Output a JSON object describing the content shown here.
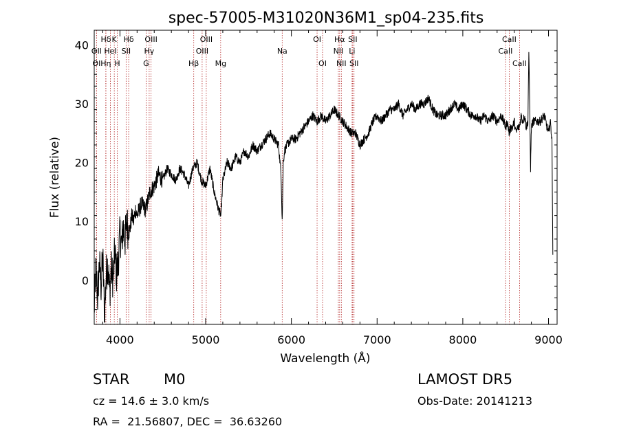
{
  "chart_data": {
    "type": "line",
    "title": "spec-57005-M31020N36M1_sp04-235.fits",
    "xlabel": "Wavelength (Å)",
    "ylabel": "Flux (relative)",
    "xlim": [
      3700,
      9100
    ],
    "ylim": [
      -7.5,
      42.5
    ],
    "xticks": [
      4000,
      5000,
      6000,
      7000,
      8000,
      9000
    ],
    "yticks": [
      0,
      10,
      20,
      30,
      40
    ],
    "grid": false,
    "line_color": "#000000",
    "marker_color": "#b22222",
    "lines": [
      {
        "label": "Hδ",
        "x": 3836,
        "row": 0
      },
      {
        "label": "K",
        "x": 3934,
        "row": 0
      },
      {
        "label": "Hδ",
        "x": 4102,
        "row": 0
      },
      {
        "label": "OIII",
        "x": 4363,
        "row": 0
      },
      {
        "label": "OIII",
        "x": 5007,
        "row": 0
      },
      {
        "label": "OI",
        "x": 6300,
        "row": 0
      },
      {
        "label": "Hα",
        "x": 6563,
        "row": 0
      },
      {
        "label": "SII",
        "x": 6716,
        "row": 0
      },
      {
        "label": "CaII",
        "x": 8542,
        "row": 0
      },
      {
        "label": "OII",
        "x": 3727,
        "row": 1
      },
      {
        "label": "HeI",
        "x": 3889,
        "row": 1
      },
      {
        "label": "SII",
        "x": 4072,
        "row": 1
      },
      {
        "label": "Hγ",
        "x": 4341,
        "row": 1
      },
      {
        "label": "OIII",
        "x": 4959,
        "row": 1
      },
      {
        "label": "Na",
        "x": 5893,
        "row": 1
      },
      {
        "label": "NII",
        "x": 6548,
        "row": 1
      },
      {
        "label": "Li",
        "x": 6708,
        "row": 1
      },
      {
        "label": "CaII",
        "x": 8498,
        "row": 1
      },
      {
        "label": "OI",
        "x": 3727,
        "row": 2
      },
      {
        "label": "Hη",
        "x": 3835,
        "row": 2
      },
      {
        "label": "H",
        "x": 3969,
        "row": 2
      },
      {
        "label": "G",
        "x": 4305,
        "row": 2
      },
      {
        "label": "Hβ",
        "x": 4861,
        "row": 2
      },
      {
        "label": "Mg",
        "x": 5175,
        "row": 2
      },
      {
        "label": "OI",
        "x": 6364,
        "row": 2
      },
      {
        "label": "NII",
        "x": 6583,
        "row": 2
      },
      {
        "label": "SII",
        "x": 6731,
        "row": 2
      },
      {
        "label": "CaII",
        "x": 8662,
        "row": 2
      }
    ],
    "series": [
      {
        "x": [
          3700,
          3720,
          3740,
          3760,
          3780,
          3800,
          3820,
          3840,
          3860,
          3880,
          3900,
          3920,
          3940,
          3960,
          3980,
          4000,
          4020,
          4040,
          4060,
          4080,
          4100,
          4120,
          4140,
          4160,
          4180,
          4200,
          4250,
          4300,
          4350,
          4400,
          4450,
          4500,
          4550,
          4600,
          4650,
          4700,
          4750,
          4800,
          4850,
          4900,
          4950,
          5000,
          5050,
          5100,
          5150,
          5180,
          5200,
          5250,
          5300,
          5350,
          5400,
          5450,
          5500,
          5550,
          5600,
          5650,
          5700,
          5750,
          5800,
          5850,
          5880,
          5893,
          5905,
          5920,
          5950,
          6000,
          6050,
          6100,
          6150,
          6200,
          6250,
          6300,
          6350,
          6400,
          6450,
          6500,
          6550,
          6600,
          6650,
          6700,
          6750,
          6800,
          6850,
          6900,
          6950,
          7000,
          7050,
          7100,
          7150,
          7200,
          7250,
          7300,
          7350,
          7400,
          7450,
          7500,
          7550,
          7600,
          7650,
          7700,
          7750,
          7800,
          7850,
          7900,
          7950,
          8000,
          8050,
          8100,
          8150,
          8200,
          8250,
          8300,
          8350,
          8400,
          8450,
          8500,
          8520,
          8540,
          8560,
          8580,
          8600,
          8620,
          8640,
          8660,
          8680,
          8700,
          8720,
          8740,
          8760,
          8770,
          8780,
          8790,
          8800,
          8820,
          8850,
          8900,
          8950,
          9000,
          9020,
          9040,
          9050
        ],
        "y": [
          -5,
          2,
          -3,
          3,
          -1,
          4,
          -6,
          1,
          3,
          -2,
          2,
          0,
          5,
          1,
          3,
          8,
          6,
          9,
          7,
          10,
          8,
          9,
          11,
          10,
          12,
          11,
          13,
          12,
          15,
          16,
          18,
          17,
          19,
          18,
          17,
          19,
          18,
          16,
          19,
          20,
          17,
          16,
          19,
          15,
          12,
          11,
          17,
          20,
          19,
          21,
          20,
          22,
          21,
          23,
          22,
          23,
          24,
          25,
          24,
          23,
          18,
          10,
          20,
          22,
          23,
          24,
          24,
          25,
          26,
          27,
          28,
          27,
          28,
          27,
          28,
          29,
          28,
          27,
          26,
          25,
          25,
          23,
          24,
          25,
          27,
          28,
          27,
          28,
          29,
          29,
          30,
          28,
          29,
          30,
          29,
          30,
          30,
          31,
          29,
          28,
          28,
          28,
          29,
          30,
          29,
          30,
          29,
          28,
          28,
          27,
          28,
          27,
          28,
          27,
          28,
          26,
          27,
          25,
          26,
          26,
          27,
          25,
          26,
          26,
          28,
          27,
          28,
          26,
          27,
          39,
          30,
          19,
          26,
          27,
          27,
          27,
          28,
          25,
          27,
          24,
          5
        ]
      }
    ]
  },
  "info": {
    "class_label": "STAR",
    "subclass": "M0",
    "cz": "cz = 14.6 ± 3.0 km/s",
    "coords": "RA =  21.56807, DEC =  36.63260",
    "survey": "LAMOST DR5",
    "obs_date": "Obs-Date: 20141213"
  }
}
